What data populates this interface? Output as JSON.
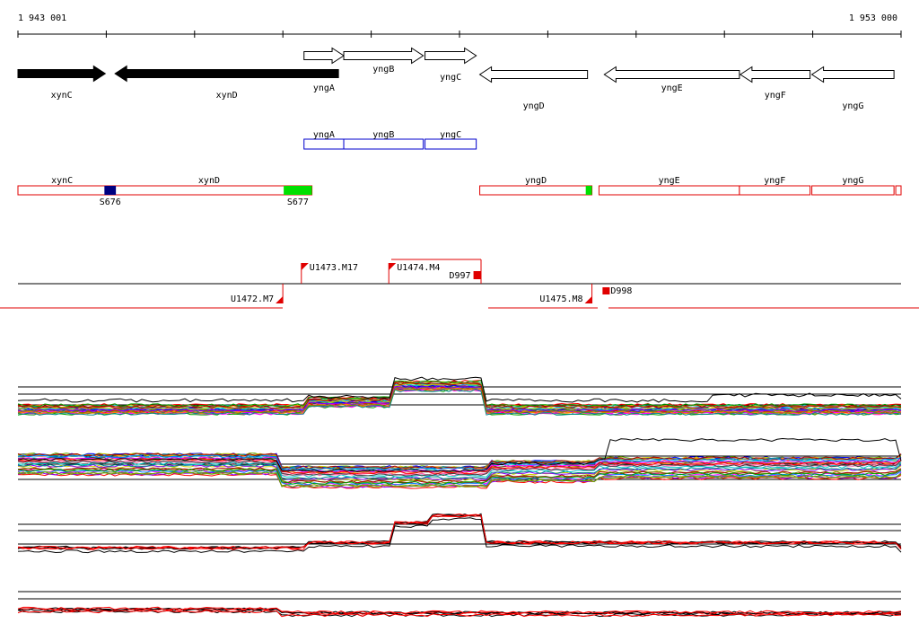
{
  "ruler": {
    "start_label": "1 943 001",
    "end_label": "1 953 000"
  },
  "genes": [
    {
      "id": "xynC",
      "label": "xynC",
      "strand": "+",
      "filled": true,
      "start": 1943001,
      "end": 1943990
    },
    {
      "id": "xynD",
      "label": "xynD",
      "strand": "-",
      "filled": true,
      "start": 1944100,
      "end": 1946630
    },
    {
      "id": "yngA",
      "label": "yngA",
      "strand": "+",
      "filled": false,
      "start": 1946240,
      "end": 1946690
    },
    {
      "id": "yngB",
      "label": "yngB",
      "strand": "+",
      "filled": false,
      "start": 1946690,
      "end": 1947590
    },
    {
      "id": "yngC",
      "label": "yngC",
      "strand": "+",
      "filled": false,
      "start": 1947610,
      "end": 1948190
    },
    {
      "id": "yngD",
      "label": "yngD",
      "strand": "-",
      "filled": false,
      "start": 1948230,
      "end": 1949450
    },
    {
      "id": "yngE",
      "label": "yngE",
      "strand": "-",
      "filled": false,
      "start": 1949640,
      "end": 1951170
    },
    {
      "id": "yngF",
      "label": "yngF",
      "strand": "-",
      "filled": false,
      "start": 1951180,
      "end": 1951970
    },
    {
      "id": "yngG",
      "label": "yngG",
      "strand": "-",
      "filled": false,
      "start": 1951990,
      "end": 1952920
    }
  ],
  "operon_blue": [
    {
      "label": "yngA",
      "start": 1946240,
      "end": 1946690
    },
    {
      "label": "yngB",
      "start": 1946690,
      "end": 1947590
    },
    {
      "label": "yngC",
      "start": 1947610,
      "end": 1948190
    }
  ],
  "operon_red": [
    {
      "label": "xynC",
      "start": 1943001,
      "end": 1944000
    },
    {
      "label": "xynD",
      "start": 1944000,
      "end": 1946330
    },
    {
      "label": "yngD",
      "start": 1948230,
      "end": 1949500
    },
    {
      "label": "yngE",
      "start": 1949580,
      "end": 1951170
    },
    {
      "label": "yngF",
      "start": 1951170,
      "end": 1951970
    },
    {
      "label": "yngG",
      "start": 1951990,
      "end": 1952920
    },
    {
      "label": "",
      "start": 1952940,
      "end": 1953000
    }
  ],
  "sites": [
    {
      "label": "S676",
      "start": 1943980,
      "end": 1944110,
      "color": "#000080"
    },
    {
      "label": "S677",
      "start": 1946010,
      "end": 1946330,
      "color": "#00e000"
    },
    {
      "label": "",
      "start": 1949430,
      "end": 1949500,
      "color": "#00e000"
    }
  ],
  "transcripts": [
    {
      "label": "U1472.M7",
      "position": 1946000,
      "start": 1943001,
      "end": 1946000,
      "strand": "-"
    },
    {
      "label": "U1473.M17",
      "position": 1946210,
      "start": 1946210,
      "end": 1953000,
      "strand": "+"
    },
    {
      "label": "U1474.M4",
      "position": 1947200,
      "start": 1947200,
      "end": 1948230,
      "strand": "+"
    },
    {
      "label": "U1475.M8",
      "position": 1949500,
      "start": 1948230,
      "end": 1949500,
      "strand": "-"
    }
  ],
  "terminators": [
    {
      "label": "D997",
      "position": 1948230
    },
    {
      "label": "D998",
      "position": 1949620
    }
  ],
  "expression_tracks": [
    {
      "name": "track-1",
      "colors": [
        "multicolor"
      ]
    },
    {
      "name": "track-2",
      "colors": [
        "multicolor"
      ]
    },
    {
      "name": "track-3",
      "colors": [
        "#000000",
        "#ff0000"
      ]
    },
    {
      "name": "track-4",
      "colors": [
        "#000000",
        "#ff0000"
      ]
    }
  ]
}
